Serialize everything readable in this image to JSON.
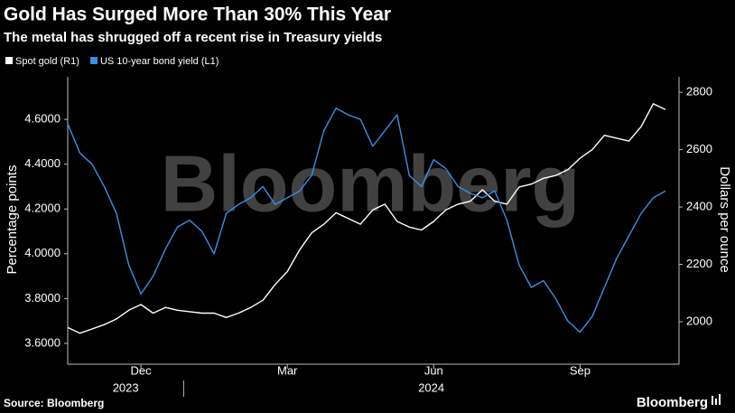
{
  "chart_data": {
    "type": "line",
    "title": "Gold Has Surged More Than 30% This Year",
    "subtitle": "The metal has shrugged off a recent rise in Treasury yields",
    "watermark": "Bloomberg",
    "source": "Source: Bloomberg",
    "brand": "Bloomberg",
    "y_label": "Percentage points",
    "y2_label": "Dollars per ounce",
    "x": [
      "2023-10",
      "2023-10",
      "2023-11",
      "2023-11",
      "2023-11",
      "2023-11",
      "2023-12",
      "2023-12",
      "2023-12",
      "2023-12",
      "2024-01",
      "2024-01",
      "2024-01",
      "2024-01",
      "2024-02",
      "2024-02",
      "2024-02",
      "2024-02",
      "2024-03",
      "2024-03",
      "2024-03",
      "2024-03",
      "2024-04",
      "2024-04",
      "2024-04",
      "2024-04",
      "2024-05",
      "2024-05",
      "2024-05",
      "2024-05",
      "2024-06",
      "2024-06",
      "2024-06",
      "2024-06",
      "2024-07",
      "2024-07",
      "2024-07",
      "2024-07",
      "2024-08",
      "2024-08",
      "2024-08",
      "2024-08",
      "2024-09",
      "2024-09",
      "2024-09",
      "2024-09",
      "2024-10",
      "2024-10",
      "2024-10",
      "2024-10"
    ],
    "xticks": [
      {
        "value": "2023-12",
        "label": "Dec"
      },
      {
        "value": "2024-03",
        "label": "Mar"
      },
      {
        "value": "2024-06",
        "label": "Jun"
      },
      {
        "value": "2024-09",
        "label": "Sep"
      }
    ],
    "years": [
      "2023",
      "2024"
    ],
    "series": [
      {
        "name": "Spot gold (R1)",
        "color": "#ffffff",
        "axis": "y2",
        "values": [
          1980,
          1960,
          1975,
          1990,
          2010,
          2040,
          2060,
          2030,
          2050,
          2040,
          2035,
          2030,
          2030,
          2015,
          2030,
          2050,
          2075,
          2130,
          2175,
          2250,
          2310,
          2340,
          2380,
          2360,
          2340,
          2390,
          2410,
          2350,
          2330,
          2320,
          2350,
          2390,
          2410,
          2420,
          2460,
          2420,
          2410,
          2470,
          2480,
          2500,
          2510,
          2530,
          2570,
          2600,
          2650,
          2640,
          2630,
          2680,
          2760,
          2740
        ]
      },
      {
        "name": "US 10-year bond yield (L1)",
        "color": "#3a8fe6",
        "values": [
          4.58,
          4.45,
          4.4,
          4.3,
          4.18,
          3.95,
          3.82,
          3.9,
          4.02,
          4.12,
          4.15,
          4.1,
          4.0,
          4.18,
          4.22,
          4.25,
          4.3,
          4.22,
          4.25,
          4.28,
          4.35,
          4.55,
          4.65,
          4.62,
          4.6,
          4.48,
          4.55,
          4.62,
          4.35,
          4.3,
          4.42,
          4.38,
          4.3,
          4.27,
          4.25,
          4.28,
          4.15,
          3.95,
          3.85,
          3.88,
          3.8,
          3.7,
          3.65,
          3.72,
          3.85,
          3.98,
          4.08,
          4.18,
          4.25,
          4.28
        ]
      }
    ],
    "ylim": [
      3.507,
      4.79
    ],
    "yticks": [
      {
        "value": 3.6,
        "label": "3.6000"
      },
      {
        "value": 3.8,
        "label": "3.8000"
      },
      {
        "value": 4.0,
        "label": "4.0000"
      },
      {
        "value": 4.2,
        "label": "4.2000"
      },
      {
        "value": 4.4,
        "label": "4.4000"
      },
      {
        "value": 4.6,
        "label": "4.6000"
      }
    ],
    "y2lim": [
      1852,
      2854
    ],
    "y2ticks": [
      2000,
      2200,
      2400,
      2600,
      2800
    ],
    "grid": false
  }
}
